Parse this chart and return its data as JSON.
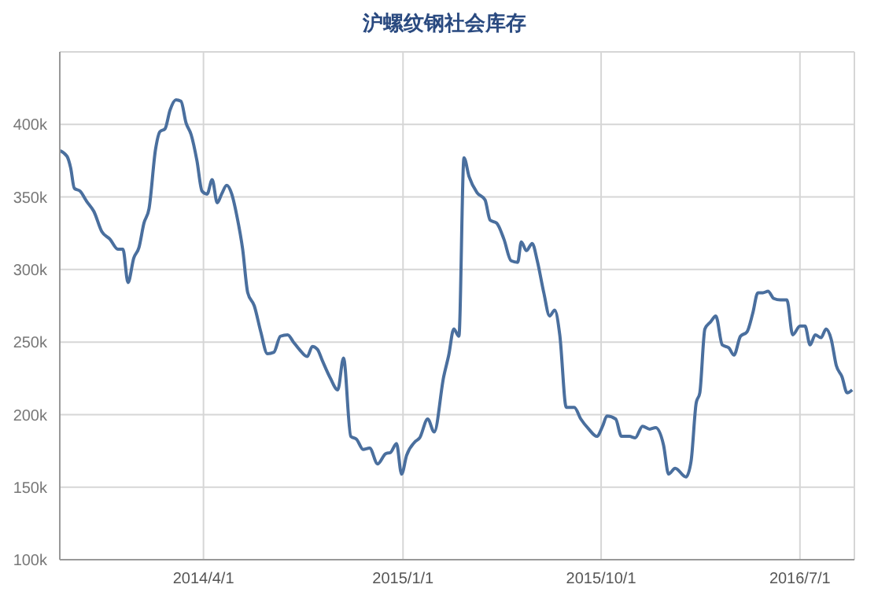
{
  "chart_data": {
    "type": "line",
    "title": "沪螺纹钢社会库存",
    "x": [
      "2013-09-15",
      "2013-09-25",
      "2013-09-30",
      "2013-10-05",
      "2013-10-13",
      "2013-10-22",
      "2013-11-01",
      "2013-11-12",
      "2013-11-23",
      "2013-12-04",
      "2013-12-11",
      "2013-12-18",
      "2013-12-26",
      "2014-01-02",
      "2014-01-09",
      "2014-01-16",
      "2014-01-25",
      "2014-01-31",
      "2014-02-07",
      "2014-02-14",
      "2014-02-22",
      "2014-03-01",
      "2014-03-08",
      "2014-03-15",
      "2014-03-23",
      "2014-03-30",
      "2014-04-06",
      "2014-04-13",
      "2014-04-20",
      "2014-04-26",
      "2014-05-03",
      "2014-05-10",
      "2014-05-17",
      "2014-05-25",
      "2014-06-01",
      "2014-06-10",
      "2014-06-19",
      "2014-06-28",
      "2014-07-07",
      "2014-07-16",
      "2014-07-26",
      "2014-08-03",
      "2014-08-11",
      "2014-08-22",
      "2014-08-29",
      "2014-09-05",
      "2014-09-12",
      "2014-09-23",
      "2014-10-03",
      "2014-10-11",
      "2014-10-21",
      "2014-10-29",
      "2014-11-07",
      "2014-11-16",
      "2014-11-27",
      "2014-12-08",
      "2014-12-15",
      "2014-12-23",
      "2014-12-30",
      "2015-01-06",
      "2015-01-17",
      "2015-01-24",
      "2015-02-04",
      "2015-02-13",
      "2015-02-26",
      "2015-03-05",
      "2015-03-12",
      "2015-03-19",
      "2015-03-26",
      "2015-04-02",
      "2015-04-13",
      "2015-04-24",
      "2015-05-01",
      "2015-05-10",
      "2015-05-20",
      "2015-05-30",
      "2015-06-08",
      "2015-06-13",
      "2015-06-20",
      "2015-06-28",
      "2015-07-05",
      "2015-07-14",
      "2015-07-22",
      "2015-07-29",
      "2015-08-05",
      "2015-08-14",
      "2015-08-25",
      "2015-09-03",
      "2015-09-14",
      "2015-09-25",
      "2015-10-03",
      "2015-10-09",
      "2015-10-21",
      "2015-10-29",
      "2015-11-09",
      "2015-11-17",
      "2015-11-27",
      "2015-12-07",
      "2015-12-15",
      "2015-12-26",
      "2016-01-02",
      "2016-01-11",
      "2016-01-26",
      "2016-02-02",
      "2016-02-09",
      "2016-02-14",
      "2016-02-21",
      "2016-02-29",
      "2016-03-07",
      "2016-03-16",
      "2016-03-25",
      "2016-04-01",
      "2016-04-10",
      "2016-04-19",
      "2016-04-27",
      "2016-05-04",
      "2016-05-11",
      "2016-05-18",
      "2016-05-26",
      "2016-06-04",
      "2016-06-13",
      "2016-06-21",
      "2016-07-01",
      "2016-07-08",
      "2016-07-15",
      "2016-07-22",
      "2016-07-30",
      "2016-08-06",
      "2016-08-13",
      "2016-08-20",
      "2016-08-28",
      "2016-09-04",
      "2016-09-11"
    ],
    "series": [
      {
        "color": "#4a6f9e",
        "values": [
          382000,
          378000,
          370000,
          356000,
          354000,
          347000,
          340000,
          326000,
          321000,
          314000,
          314000,
          291000,
          308000,
          315000,
          332000,
          342000,
          383000,
          395000,
          397000,
          410000,
          417000,
          416000,
          401000,
          393000,
          375000,
          354000,
          352000,
          362000,
          346000,
          352000,
          358000,
          352000,
          337000,
          314000,
          284000,
          275000,
          257000,
          242000,
          243000,
          254000,
          255000,
          250000,
          245000,
          240000,
          247000,
          245000,
          237000,
          225000,
          217000,
          239000,
          185000,
          183000,
          176000,
          177000,
          166000,
          173000,
          174000,
          180000,
          159000,
          172000,
          181000,
          184000,
          197000,
          188000,
          226000,
          241000,
          259000,
          254000,
          377000,
          364000,
          353000,
          348000,
          334000,
          332000,
          321000,
          306000,
          305000,
          319000,
          313000,
          318000,
          306000,
          284000,
          268000,
          272000,
          255000,
          205000,
          205000,
          197000,
          190000,
          185000,
          192000,
          199000,
          197000,
          185000,
          185000,
          184000,
          192000,
          190000,
          191000,
          179000,
          159000,
          163000,
          157000,
          168000,
          208000,
          215000,
          259000,
          264000,
          268000,
          248000,
          246000,
          241000,
          254000,
          257000,
          270000,
          284000,
          284000,
          285000,
          280000,
          279000,
          279000,
          255000,
          261000,
          261000,
          248000,
          255000,
          253000,
          259000,
          252000,
          234000,
          226000,
          215000,
          217000
        ]
      }
    ],
    "xlim": [
      "2013-09-15",
      "2016-09-14"
    ],
    "xticks": [
      {
        "value": "2014-04-01",
        "label": "2014/4/1"
      },
      {
        "value": "2015-01-01",
        "label": "2015/1/1"
      },
      {
        "value": "2015-10-01",
        "label": "2015/10/1"
      },
      {
        "value": "2016-07-01",
        "label": "2016/7/1"
      }
    ],
    "ylim": [
      100000,
      450000
    ],
    "yticks": [
      {
        "value": 100000,
        "label": "100k"
      },
      {
        "value": 150000,
        "label": "150k"
      },
      {
        "value": 200000,
        "label": "200k"
      },
      {
        "value": 250000,
        "label": "250k"
      },
      {
        "value": 300000,
        "label": "300k"
      },
      {
        "value": 350000,
        "label": "350k"
      },
      {
        "value": 400000,
        "label": "400k"
      }
    ],
    "grid": true,
    "marker": "none",
    "line_style": "solid"
  }
}
